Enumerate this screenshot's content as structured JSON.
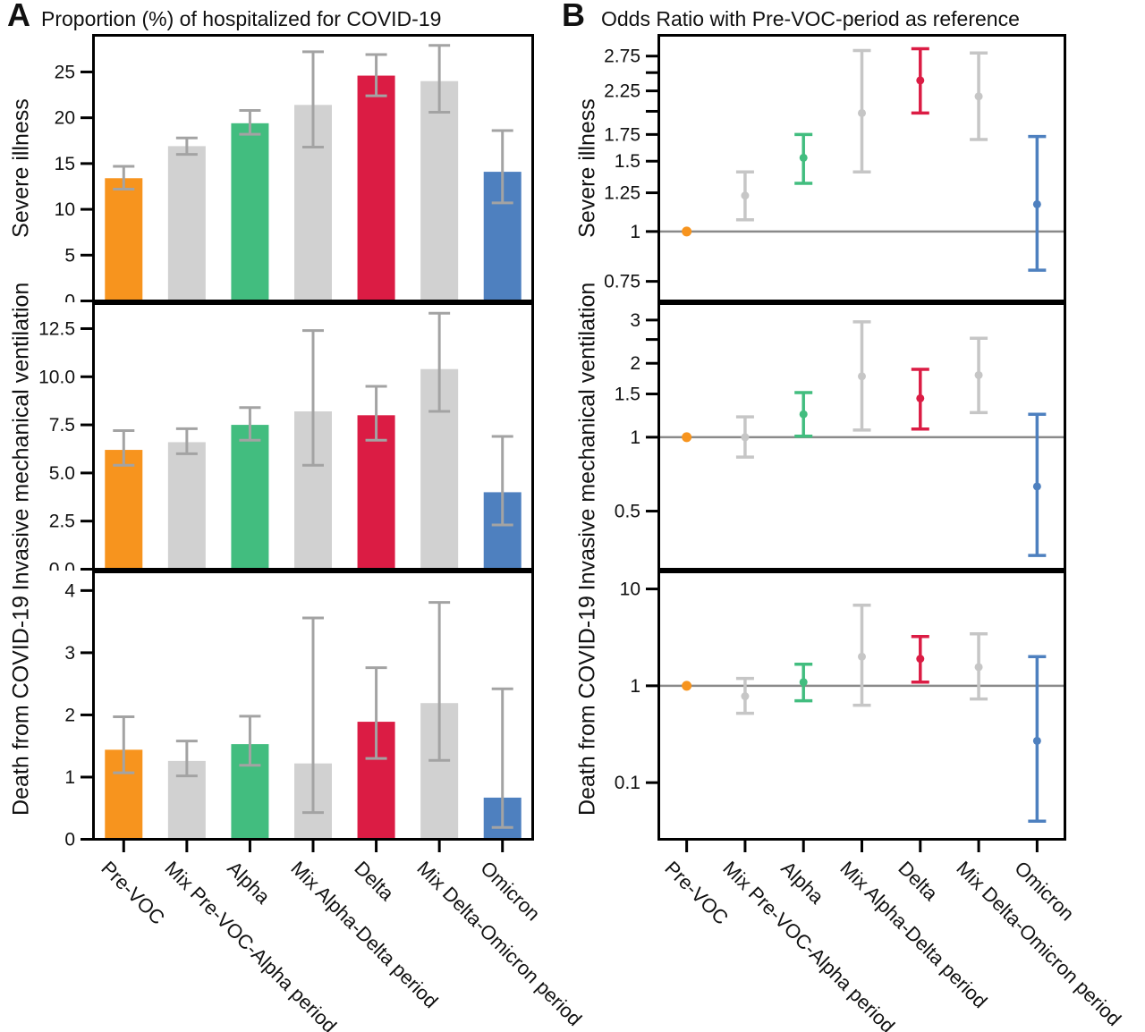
{
  "figure": {
    "panels": [
      {
        "label": "A",
        "title": "Proportion (%) of hospitalized for COVID-19"
      },
      {
        "label": "B",
        "title": "Odds Ratio with Pre-VOC-period as reference"
      }
    ]
  },
  "categories": [
    "Pre-VOC",
    "Mix Pre-VOC-Alpha period",
    "Alpha",
    "Mix Alpha-Delta period",
    "Delta",
    "Mix Delta-Omicron period",
    "Omicron"
  ],
  "colors": {
    "bar_series": [
      "#F7941E",
      "#D1D1D1",
      "#42BD7F",
      "#D1D1D1",
      "#DB1C44",
      "#D1D1D1",
      "#4E80BF"
    ],
    "point_series": [
      "#F7941E",
      "#C6C6C6",
      "#42BD7F",
      "#C6C6C6",
      "#DB1C44",
      "#C6C6C6",
      "#4E80BF"
    ],
    "errorbar_gray": "#A3A3A3",
    "reference_line": "#8A8A8A",
    "axis": "#000000"
  },
  "chart_data": [
    {
      "type": "bar",
      "panel": "A",
      "row": 0,
      "scale": "linear",
      "ylabel": "Severe illness",
      "values": [
        13.4,
        16.9,
        19.4,
        21.4,
        24.6,
        24.0,
        14.1
      ],
      "ci_low": [
        12.2,
        16.0,
        18.2,
        16.8,
        22.4,
        20.6,
        10.7
      ],
      "ci_high": [
        14.7,
        17.8,
        20.8,
        27.2,
        26.9,
        27.9,
        18.6
      ],
      "ytick_values": [
        25,
        20,
        15,
        10,
        5,
        0
      ],
      "ytick_labels": [
        "25",
        "20",
        "15",
        "10",
        "5",
        "0"
      ],
      "ylim": [
        0,
        29
      ],
      "reference_line": null
    },
    {
      "type": "bar",
      "panel": "A",
      "row": 1,
      "scale": "linear",
      "ylabel": "Invasive mechanical ventilation",
      "values": [
        6.2,
        6.6,
        7.5,
        8.2,
        8.0,
        10.4,
        4.0
      ],
      "ci_low": [
        5.4,
        6.0,
        6.7,
        5.4,
        6.7,
        8.2,
        2.3
      ],
      "ci_high": [
        7.2,
        7.3,
        8.4,
        12.4,
        9.5,
        13.3,
        6.9
      ],
      "ytick_values": [
        12.5,
        10,
        7.5,
        5,
        2.5,
        0
      ],
      "ytick_labels": [
        "12.5",
        "10.0",
        "7.5",
        "5.0",
        "2.5",
        "0.0"
      ],
      "ylim": [
        0,
        13.8
      ],
      "reference_line": null
    },
    {
      "type": "bar",
      "panel": "A",
      "row": 2,
      "scale": "linear",
      "ylabel": "Death from COVID-19",
      "values": [
        1.44,
        1.26,
        1.53,
        1.22,
        1.89,
        2.19,
        0.67
      ],
      "ci_low": [
        1.07,
        1.02,
        1.19,
        0.43,
        1.3,
        1.27,
        0.19
      ],
      "ci_high": [
        1.97,
        1.58,
        1.98,
        3.56,
        2.76,
        3.81,
        2.42
      ],
      "ytick_values": [
        4,
        3,
        2,
        1,
        0
      ],
      "ytick_labels": [
        "4",
        "3",
        "2",
        "1",
        "0"
      ],
      "ylim": [
        0,
        4.3
      ],
      "reference_line": null
    },
    {
      "type": "errorbar",
      "panel": "B",
      "row": 0,
      "scale": "log",
      "ylabel": "Severe illness",
      "values": [
        1.0,
        1.23,
        1.53,
        1.98,
        2.39,
        2.18,
        1.17
      ],
      "ci_low": [
        null,
        1.07,
        1.32,
        1.41,
        1.98,
        1.7,
        0.8
      ],
      "ci_high": [
        null,
        1.41,
        1.75,
        2.84,
        2.87,
        2.8,
        1.73
      ],
      "ytick_values": [
        2.75,
        2.5,
        2.25,
        2.0,
        1.75,
        1.5,
        1.25,
        1,
        0.75
      ],
      "ytick_labels": [
        "2.75",
        "",
        "2.25",
        "",
        "1.75",
        "1.5",
        "1.25",
        "1",
        "0.75"
      ],
      "ylim": [
        0.67,
        3.1
      ],
      "reference_line": 1
    },
    {
      "type": "errorbar",
      "panel": "B",
      "row": 1,
      "scale": "log",
      "ylabel": "Invasive mechanical ventilation",
      "values": [
        1.0,
        1.0,
        1.24,
        1.77,
        1.44,
        1.79,
        0.63
      ],
      "ci_low": [
        null,
        0.83,
        1.01,
        1.07,
        1.08,
        1.26,
        0.33
      ],
      "ci_high": [
        null,
        1.21,
        1.52,
        2.95,
        1.89,
        2.53,
        1.24
      ],
      "ytick_values": [
        3,
        2.5,
        2,
        1.5,
        1,
        0.5
      ],
      "ytick_labels": [
        "3",
        "",
        "2",
        "1.5",
        "1",
        "0.5"
      ],
      "ylim": [
        0.29,
        3.5
      ],
      "reference_line": 1
    },
    {
      "type": "errorbar",
      "panel": "B",
      "row": 2,
      "scale": "log",
      "ylabel": "Death from COVID-19",
      "values": [
        1.0,
        0.78,
        1.09,
        2.0,
        1.9,
        1.56,
        0.27
      ],
      "ci_low": [
        null,
        0.52,
        0.7,
        0.63,
        1.09,
        0.73,
        0.04
      ],
      "ci_high": [
        null,
        1.19,
        1.67,
        6.8,
        3.23,
        3.44,
        2.0
      ],
      "ytick_values": [
        10,
        1,
        0.1
      ],
      "ytick_labels": [
        "10",
        "1",
        "0.1"
      ],
      "ylim": [
        0.026,
        15
      ],
      "reference_line": 1
    }
  ]
}
